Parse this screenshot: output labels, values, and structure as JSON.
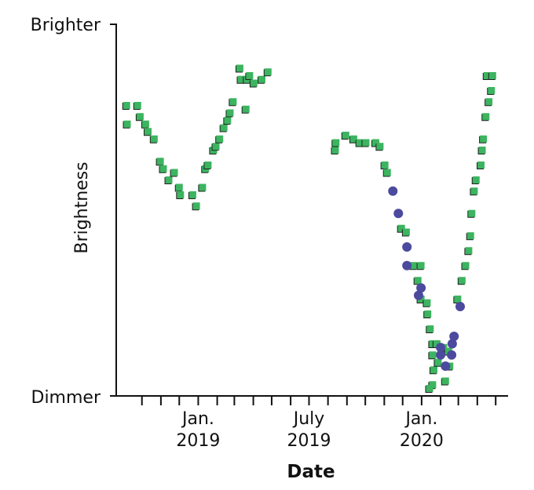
{
  "chart_data": {
    "type": "scatter",
    "title": "",
    "xlabel": "Date",
    "ylabel": "Brightness",
    "y_top_label": "Brighter",
    "y_bottom_label": "Dimmer",
    "xlim": [
      "2018-08-20",
      "2020-05-20"
    ],
    "ylim": [
      0,
      1
    ],
    "x_ticks_monthly_from": "2018-10-01",
    "x_tick_count": 20,
    "x_tick_labels": [
      {
        "date": "2019-01-01",
        "line1": "Jan.",
        "line2": "2019"
      },
      {
        "date": "2019-07-01",
        "line1": "July",
        "line2": "2019"
      },
      {
        "date": "2020-01-01",
        "line1": "Jan.",
        "line2": "2020"
      }
    ],
    "grid": false,
    "legend": "none",
    "colors": {
      "series_a": "#3cb460",
      "series_b": "#4b4a9e",
      "axis": "#111111"
    },
    "series": [
      {
        "marker": "square",
        "color": "#3cb460",
        "points": [
          [
            "2018-09-06",
            0.78
          ],
          [
            "2018-09-07",
            0.73
          ],
          [
            "2018-09-24",
            0.78
          ],
          [
            "2018-09-28",
            0.75
          ],
          [
            "2018-10-07",
            0.73
          ],
          [
            "2018-10-11",
            0.71
          ],
          [
            "2018-10-21",
            0.69
          ],
          [
            "2018-10-31",
            0.63
          ],
          [
            "2018-11-05",
            0.61
          ],
          [
            "2018-11-14",
            0.58
          ],
          [
            "2018-11-23",
            0.6
          ],
          [
            "2018-12-01",
            0.56
          ],
          [
            "2018-12-03",
            0.54
          ],
          [
            "2018-12-23",
            0.54
          ],
          [
            "2018-12-29",
            0.51
          ],
          [
            "2019-01-08",
            0.56
          ],
          [
            "2019-01-13",
            0.61
          ],
          [
            "2019-01-17",
            0.62
          ],
          [
            "2019-01-26",
            0.66
          ],
          [
            "2019-01-30",
            0.67
          ],
          [
            "2019-02-05",
            0.69
          ],
          [
            "2019-02-12",
            0.72
          ],
          [
            "2019-02-18",
            0.74
          ],
          [
            "2019-02-22",
            0.76
          ],
          [
            "2019-02-27",
            0.79
          ],
          [
            "2019-03-10",
            0.88
          ],
          [
            "2019-03-12",
            0.85
          ],
          [
            "2019-03-20",
            0.77
          ],
          [
            "2019-03-22",
            0.85
          ],
          [
            "2019-03-26",
            0.86
          ],
          [
            "2019-04-02",
            0.84
          ],
          [
            "2019-04-15",
            0.85
          ],
          [
            "2019-04-25",
            0.87
          ],
          [
            "2019-08-13",
            0.66
          ],
          [
            "2019-08-14",
            0.68
          ],
          [
            "2019-08-30",
            0.7
          ],
          [
            "2019-09-12",
            0.69
          ],
          [
            "2019-09-22",
            0.68
          ],
          [
            "2019-10-02",
            0.68
          ],
          [
            "2019-10-18",
            0.68
          ],
          [
            "2019-10-25",
            0.67
          ],
          [
            "2019-11-02",
            0.62
          ],
          [
            "2019-11-06",
            0.6
          ],
          [
            "2019-11-29",
            0.45
          ],
          [
            "2019-12-07",
            0.44
          ],
          [
            "2019-12-19",
            0.35
          ],
          [
            "2019-12-31",
            0.35
          ],
          [
            "2019-12-26",
            0.31
          ],
          [
            "2019-12-31",
            0.26
          ],
          [
            "2020-01-10",
            0.25
          ],
          [
            "2020-01-11",
            0.22
          ],
          [
            "2020-01-15",
            0.18
          ],
          [
            "2020-01-19",
            0.14
          ],
          [
            "2020-01-26",
            0.14
          ],
          [
            "2020-01-19",
            0.11
          ],
          [
            "2020-01-21",
            0.07
          ],
          [
            "2020-01-28",
            0.09
          ],
          [
            "2020-02-06",
            0.13
          ],
          [
            "2020-02-14",
            0.12
          ],
          [
            "2020-02-16",
            0.08
          ],
          [
            "2020-02-09",
            0.04
          ],
          [
            "2020-01-19",
            0.03
          ],
          [
            "2020-01-14",
            0.02
          ],
          [
            "2020-02-29",
            0.26
          ],
          [
            "2020-03-07",
            0.31
          ],
          [
            "2020-03-13",
            0.35
          ],
          [
            "2020-03-18",
            0.39
          ],
          [
            "2020-03-21",
            0.43
          ],
          [
            "2020-03-23",
            0.49
          ],
          [
            "2020-03-27",
            0.55
          ],
          [
            "2020-03-30",
            0.58
          ],
          [
            "2020-04-07",
            0.62
          ],
          [
            "2020-04-09",
            0.66
          ],
          [
            "2020-04-11",
            0.69
          ],
          [
            "2020-04-15",
            0.75
          ],
          [
            "2020-04-20",
            0.79
          ],
          [
            "2020-04-24",
            0.82
          ],
          [
            "2020-04-17",
            0.86
          ],
          [
            "2020-04-26",
            0.86
          ]
        ]
      },
      {
        "marker": "circle",
        "color": "#4b4a9e",
        "points": [
          [
            "2019-11-15",
            0.55
          ],
          [
            "2019-11-24",
            0.49
          ],
          [
            "2019-12-08",
            0.4
          ],
          [
            "2019-12-08",
            0.35
          ],
          [
            "2019-12-31",
            0.29
          ],
          [
            "2019-12-27",
            0.27
          ],
          [
            "2020-03-04",
            0.24
          ],
          [
            "2020-02-23",
            0.16
          ],
          [
            "2020-02-20",
            0.14
          ],
          [
            "2020-02-01",
            0.13
          ],
          [
            "2020-02-01",
            0.11
          ],
          [
            "2020-02-19",
            0.11
          ],
          [
            "2020-02-09",
            0.08
          ]
        ]
      }
    ]
  }
}
